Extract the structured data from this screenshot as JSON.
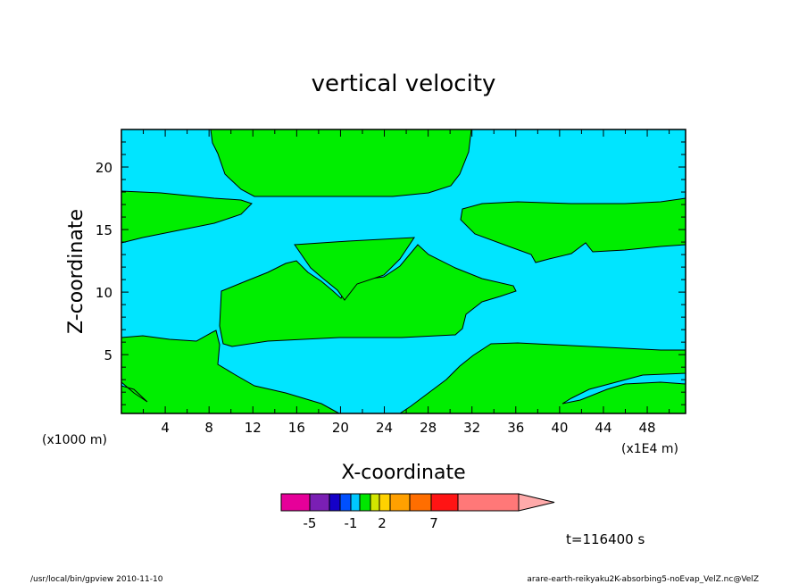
{
  "chart_data": {
    "type": "heatmap",
    "title": "vertical velocity",
    "xlabel": "X-coordinate",
    "ylabel": "Z-coordinate",
    "x_unit_left": "(x1000 m)",
    "x_unit_right": "(x1E4 m)",
    "xlim": [
      0,
      51.5
    ],
    "ylim": [
      0.3,
      23
    ],
    "x_ticks": [
      "4",
      "8",
      "12",
      "16",
      "20",
      "24",
      "28",
      "32",
      "36",
      "40",
      "44",
      "48"
    ],
    "y_ticks": [
      "5",
      "10",
      "15",
      "20"
    ],
    "timestamp": "t=116400 s",
    "field_colors": {
      "negative": "#00e5ff",
      "positive": "#00ee00"
    },
    "colorbar": {
      "colors": [
        "#e60099",
        "#7a1fb4",
        "#1400c8",
        "#0050ff",
        "#00c8ff",
        "#00e600",
        "#d2e600",
        "#ffd200",
        "#ffa000",
        "#ff6e00",
        "#ff1414",
        "#ff7878",
        "#ffaaaa"
      ],
      "labels": [
        "-5",
        "-1",
        "2",
        "7"
      ]
    }
  },
  "footer": {
    "left": "/usr/local/bin/gpview  2010-11-10",
    "right": "arare-earth-reikyaku2K-absorbing5-noEvap_VelZ.nc@VelZ"
  }
}
